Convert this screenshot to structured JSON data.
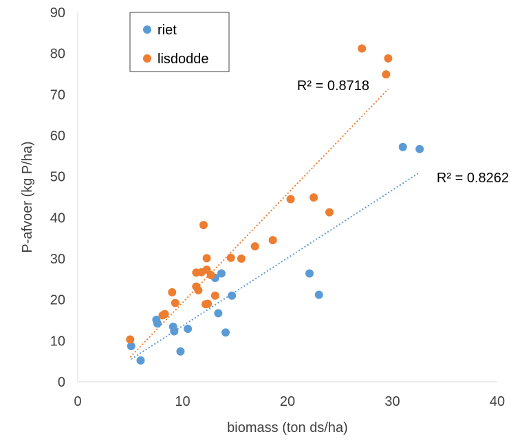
{
  "chart_data": {
    "type": "scatter",
    "title": "",
    "xlabel": "biomass (ton ds/ha)",
    "ylabel": "P-afvoer (kg P/ha)",
    "xlim": [
      0,
      40
    ],
    "ylim": [
      0,
      90
    ],
    "xticks": [
      0,
      10,
      20,
      30,
      40
    ],
    "yticks": [
      0,
      10,
      20,
      30,
      40,
      50,
      60,
      70,
      80,
      90
    ],
    "grid": false,
    "legend_position": "top-left",
    "series": [
      {
        "name": "riet",
        "color": "#5B9BD5",
        "points": [
          [
            5.1,
            8.7
          ],
          [
            6.0,
            5.2
          ],
          [
            7.5,
            15.1
          ],
          [
            7.6,
            14.2
          ],
          [
            9.1,
            13.4
          ],
          [
            9.2,
            12.3
          ],
          [
            9.8,
            7.4
          ],
          [
            10.5,
            12.9
          ],
          [
            13.1,
            25.3
          ],
          [
            13.4,
            16.7
          ],
          [
            13.7,
            26.4
          ],
          [
            14.1,
            12.0
          ],
          [
            14.7,
            21.0
          ],
          [
            22.1,
            26.4
          ],
          [
            23.0,
            21.2
          ],
          [
            31.0,
            57.2
          ],
          [
            32.6,
            56.7
          ]
        ],
        "trendline": {
          "type": "linear",
          "x": [
            5.1,
            32.6
          ],
          "y": [
            5.5,
            51.0
          ],
          "r2_label": "R² = 0.8262"
        }
      },
      {
        "name": "lisdodde",
        "color": "#ED7D31",
        "points": [
          [
            5.0,
            10.3
          ],
          [
            8.1,
            16.2
          ],
          [
            8.3,
            16.5
          ],
          [
            9.0,
            21.8
          ],
          [
            9.3,
            19.2
          ],
          [
            11.3,
            26.6
          ],
          [
            11.3,
            23.2
          ],
          [
            11.5,
            22.3
          ],
          [
            11.8,
            26.7
          ],
          [
            12.0,
            38.2
          ],
          [
            12.2,
            18.9
          ],
          [
            12.3,
            30.1
          ],
          [
            12.3,
            27.3
          ],
          [
            12.4,
            19.0
          ],
          [
            12.7,
            26.0
          ],
          [
            13.1,
            21.0
          ],
          [
            14.6,
            30.2
          ],
          [
            15.6,
            30.0
          ],
          [
            16.9,
            33.0
          ],
          [
            18.6,
            34.5
          ],
          [
            20.3,
            44.5
          ],
          [
            22.5,
            44.9
          ],
          [
            24.0,
            41.3
          ],
          [
            27.1,
            81.2
          ],
          [
            29.4,
            74.9
          ],
          [
            29.6,
            78.8
          ]
        ],
        "trendline": {
          "type": "linear",
          "x": [
            5.0,
            29.6
          ],
          "y": [
            6.0,
            71.3
          ],
          "r2_label": "R² = 0.8718"
        }
      }
    ]
  }
}
